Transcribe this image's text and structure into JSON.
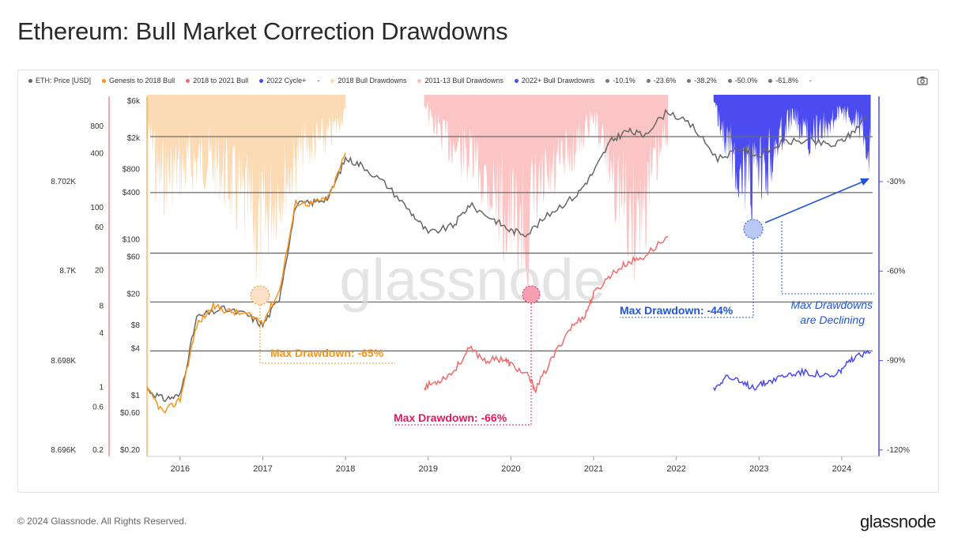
{
  "title": "Ethereum: Bull Market Correction Drawdowns",
  "footer": {
    "copyright": "© 2024 Glassnode. All Rights Reserved.",
    "logo": "glassnode"
  },
  "watermark": "glassnode",
  "toolbar": {
    "camera_icon": "camera-icon"
  },
  "legend": [
    {
      "label": "ETH: Price [USD]",
      "color": "#666666"
    },
    {
      "label": "Genesis to 2018 Bull",
      "color": "#f7931a"
    },
    {
      "label": "2018 to 2021 Bull",
      "color": "#f06b6b"
    },
    {
      "label": "2022 Cycle+",
      "color": "#4b4bf0"
    },
    {
      "label": "-",
      "color": ""
    },
    {
      "label": "2018 Bull Drawdowns",
      "color": "#fcd9b0"
    },
    {
      "label": "2011-13 Bull Drawdowns",
      "color": "#fbc2c2"
    },
    {
      "label": "2022+ Bull Drawdowns",
      "color": "#4b4bf0"
    },
    {
      "label": "-10.1%",
      "color": "#777777"
    },
    {
      "label": "-23.6%",
      "color": "#777777"
    },
    {
      "label": "-38.2%",
      "color": "#777777"
    },
    {
      "label": "-50.0%",
      "color": "#777777"
    },
    {
      "label": "-61.8%",
      "color": "#777777"
    },
    {
      "label": "-",
      "color": ""
    }
  ],
  "chart_data": {
    "type": "line",
    "x_ticks": [
      "2016",
      "2017",
      "2018",
      "2019",
      "2020",
      "2021",
      "2022",
      "2023",
      "2024"
    ],
    "price_axis_ticks": [
      "$6k",
      "$2k",
      "$800",
      "$400",
      "$100",
      "$60",
      "$20",
      "$8",
      "$4",
      "$1",
      "$0.60",
      "$0.20"
    ],
    "secondary_axis_ticks": [
      "800",
      "400",
      "100",
      "60",
      "20",
      "8",
      "4",
      "1",
      "0.6",
      "0.2"
    ],
    "tertiary_axis_ticks": [
      "8.702K",
      "8.7K",
      "8.698K",
      "8.696K"
    ],
    "drawdown_axis_ticks": [
      "-30%",
      "-60%",
      "-90%",
      "-120%"
    ],
    "fib_levels": [
      -10.1,
      -23.6,
      -38.2,
      -50.0,
      -61.8
    ],
    "annotations": [
      {
        "text": "Max Drawdown: -65%",
        "color": "#f7931a"
      },
      {
        "text": "Max Drawdown: -66%",
        "color": "#e6195a"
      },
      {
        "text": "Max Drawdown: -44%",
        "color": "#1f55d8"
      },
      {
        "text": "Max Drawdowns",
        "color": "#1f55d8"
      },
      {
        "text": "are Declining",
        "color": "#1f55d8"
      }
    ],
    "series": [
      {
        "name": "ETH: Price [USD]",
        "color": "#666666",
        "x": [
          2015.6,
          2015.8,
          2016.0,
          2016.2,
          2016.5,
          2016.8,
          2017.0,
          2017.2,
          2017.4,
          2017.6,
          2017.8,
          2018.0,
          2018.2,
          2018.5,
          2018.8,
          2019.0,
          2019.3,
          2019.5,
          2019.8,
          2020.0,
          2020.2,
          2020.5,
          2020.8,
          2021.0,
          2021.2,
          2021.4,
          2021.6,
          2021.9,
          2022.2,
          2022.5,
          2022.8,
          2023.0,
          2023.3,
          2023.6,
          2023.9,
          2024.1,
          2024.3
        ],
        "y": [
          1.2,
          0.9,
          1.0,
          10,
          13,
          11,
          8,
          18,
          280,
          300,
          350,
          1100,
          900,
          500,
          220,
          120,
          150,
          280,
          180,
          130,
          120,
          230,
          380,
          740,
          1800,
          2500,
          2200,
          4500,
          2800,
          1100,
          1500,
          1200,
          1800,
          1850,
          1600,
          2200,
          3800
        ]
      },
      {
        "name": "Genesis to 2018 Bull",
        "color": "#f7931a",
        "x": [
          2015.6,
          2015.8,
          2016.0,
          2016.2,
          2016.4,
          2016.6,
          2016.8,
          2017.0,
          2017.2,
          2017.4,
          2017.6,
          2017.8,
          2018.0
        ],
        "y": [
          1.2,
          0.6,
          0.9,
          8,
          14,
          12,
          11,
          9,
          22,
          300,
          290,
          350,
          1300
        ]
      },
      {
        "name": "2018 to 2021 Bull",
        "color": "#f06b6b",
        "x": [
          2018.95,
          2019.1,
          2019.3,
          2019.5,
          2019.7,
          2019.9,
          2020.0,
          2020.2,
          2020.3,
          2020.5,
          2020.7,
          2020.9,
          2021.0,
          2021.2,
          2021.4,
          2021.6,
          2021.9
        ],
        "y": [
          1.3,
          1.5,
          2.0,
          4.0,
          2.8,
          3.0,
          2.5,
          1.8,
          1.2,
          3.0,
          7.0,
          11.0,
          20,
          35,
          50,
          60,
          110
        ]
      },
      {
        "name": "2022 Cycle+",
        "color": "#4b4bf0",
        "x": [
          2022.45,
          2022.6,
          2022.8,
          2022.95,
          2023.1,
          2023.3,
          2023.5,
          2023.7,
          2023.9,
          2024.0,
          2024.15,
          2024.35
        ],
        "y": [
          1.2,
          1.8,
          1.4,
          1.3,
          1.5,
          1.8,
          2.0,
          1.9,
          1.7,
          2.2,
          3.0,
          3.6
        ]
      }
    ],
    "drawdown_bands": [
      {
        "name": "2018 Bull Drawdowns",
        "color": "#fcd9b0",
        "x": [
          2015.6,
          2018.0
        ],
        "deepest": -65
      },
      {
        "name": "2011-13 Bull Drawdowns",
        "color": "#fbc2c2",
        "x": [
          2018.95,
          2021.9
        ],
        "deepest": -66
      },
      {
        "name": "2022+ Bull Drawdowns",
        "color": "#4b4bf0",
        "x": [
          2022.45,
          2024.35
        ],
        "deepest": -44
      }
    ]
  }
}
